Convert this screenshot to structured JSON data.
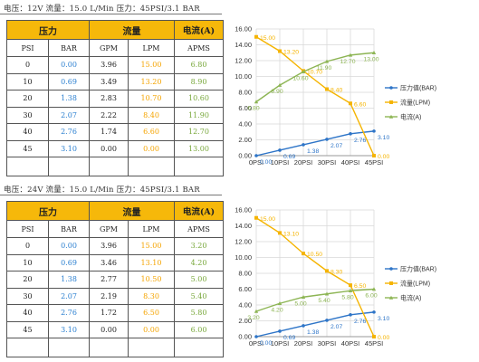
{
  "panels": [
    {
      "caption": "电压：12V  流量：15.0 L/Min  压力：45PSI/3.1 BAR",
      "table": {
        "group_headers": [
          "压力",
          "流量",
          "电流(A)"
        ],
        "sub_headers": [
          "PSI",
          "BAR",
          "GPM",
          "LPM",
          "APMS"
        ],
        "rows": [
          [
            "0",
            "0.00",
            "3.96",
            "15.00",
            "6.80"
          ],
          [
            "10",
            "0.69",
            "3.49",
            "13.20",
            "8.90"
          ],
          [
            "20",
            "1.38",
            "2.83",
            "10.70",
            "10.60"
          ],
          [
            "30",
            "2.07",
            "2.22",
            "8.40",
            "11.90"
          ],
          [
            "40",
            "2.76",
            "1.74",
            "6.60",
            "12.70"
          ],
          [
            "45",
            "3.10",
            "0.00",
            "0.00",
            "13.00"
          ],
          [
            "",
            "",
            "",
            "",
            ""
          ]
        ]
      }
    },
    {
      "caption": "电压：24V  流量：15.0 L/Min  压力：45PSI/3.1 BAR",
      "table": {
        "group_headers": [
          "压力",
          "流量",
          "电流(A)"
        ],
        "sub_headers": [
          "PSI",
          "BAR",
          "GPM",
          "LPM",
          "APMS"
        ],
        "rows": [
          [
            "0",
            "0.00",
            "3.96",
            "15.00",
            "3.20"
          ],
          [
            "10",
            "0.69",
            "3.46",
            "13.10",
            "4.20"
          ],
          [
            "20",
            "1.38",
            "2.77",
            "10.50",
            "5.00"
          ],
          [
            "30",
            "2.07",
            "2.19",
            "8.30",
            "5.40"
          ],
          [
            "40",
            "2.76",
            "1.72",
            "6.50",
            "5.80"
          ],
          [
            "45",
            "3.10",
            "0.00",
            "0.00",
            "6.00"
          ],
          [
            "",
            "",
            "",
            "",
            ""
          ]
        ]
      }
    }
  ],
  "chart_data": [
    {
      "type": "line",
      "categories": [
        "0PSI",
        "10PSI",
        "20PSI",
        "30PSI",
        "40PSI",
        "45PSI"
      ],
      "ylim": [
        0,
        16
      ],
      "yticks": [
        "0.00",
        "2.00",
        "4.00",
        "6.00",
        "8.00",
        "10.00",
        "12.00",
        "14.00",
        "16.00"
      ],
      "grid": true,
      "legend": "right",
      "series": [
        {
          "name": "压力值(BAR)",
          "color": "#2e75c8",
          "values": [
            0.0,
            0.69,
            1.38,
            2.07,
            2.76,
            3.1
          ]
        },
        {
          "name": "流量(LPM)",
          "color": "#f5b400",
          "values": [
            15.0,
            13.2,
            10.7,
            8.4,
            6.6,
            0.0
          ]
        },
        {
          "name": "电流(A)",
          "color": "#8db554",
          "values": [
            6.8,
            8.9,
            10.6,
            11.9,
            12.7,
            13.0
          ]
        }
      ]
    },
    {
      "type": "line",
      "categories": [
        "0PSI",
        "10PSI",
        "20PSI",
        "30PSI",
        "40PSI",
        "45PSI"
      ],
      "ylim": [
        0,
        16
      ],
      "yticks": [
        "0.00",
        "2.00",
        "4.00",
        "6.00",
        "8.00",
        "10.00",
        "12.00",
        "14.00",
        "16.00"
      ],
      "grid": true,
      "legend": "right",
      "series": [
        {
          "name": "压力值(BAR)",
          "color": "#2e75c8",
          "values": [
            0.0,
            0.69,
            1.38,
            2.07,
            2.76,
            3.1
          ]
        },
        {
          "name": "流量(LPM)",
          "color": "#f5b400",
          "values": [
            15.0,
            13.1,
            10.5,
            8.3,
            6.5,
            0.0
          ]
        },
        {
          "name": "电流(A)",
          "color": "#8db554",
          "values": [
            3.2,
            4.2,
            5.0,
            5.4,
            5.8,
            6.0
          ]
        }
      ]
    }
  ]
}
